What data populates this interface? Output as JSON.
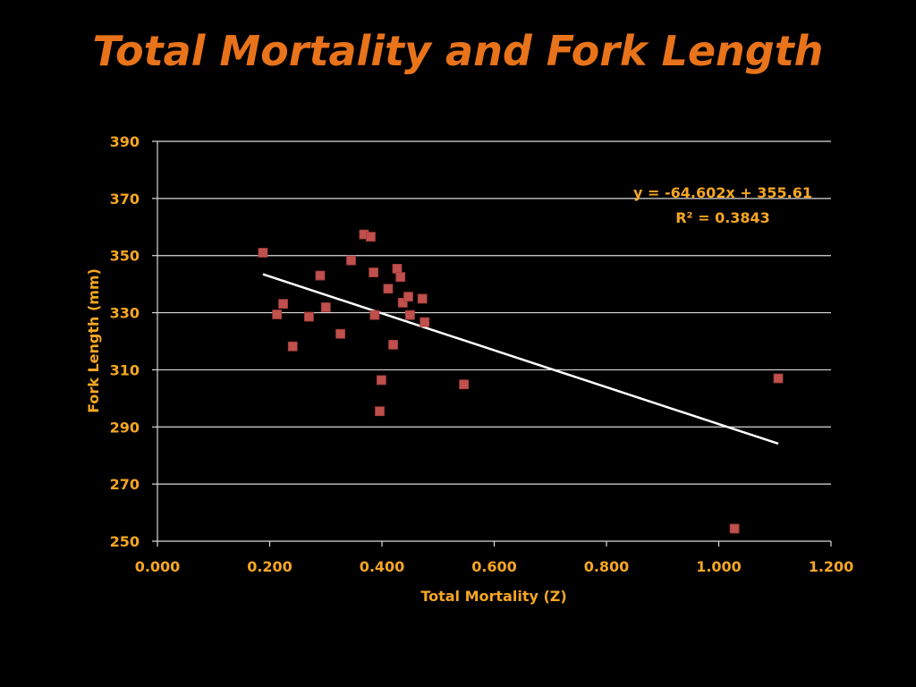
{
  "title": "Total Mortality and Fork Length",
  "chart_data": {
    "type": "scatter",
    "xlabel": "Total Mortality (Z)",
    "ylabel": "Fork Length (mm)",
    "xlim": [
      0,
      1.2
    ],
    "ylim": [
      250,
      390
    ],
    "x_ticks": [
      "0.000",
      "0.200",
      "0.400",
      "0.600",
      "0.800",
      "1.000",
      "1.200"
    ],
    "y_ticks": [
      "250",
      "270",
      "290",
      "310",
      "330",
      "350",
      "370",
      "390"
    ],
    "grid": "horizontal",
    "series": [
      {
        "points": [
          [
            0.188,
            351.0
          ],
          [
            0.213,
            329.4
          ],
          [
            0.224,
            333.1
          ],
          [
            0.241,
            318.2
          ],
          [
            0.27,
            328.6
          ],
          [
            0.29,
            343.0
          ],
          [
            0.3,
            331.9
          ],
          [
            0.326,
            322.6
          ],
          [
            0.345,
            348.3
          ],
          [
            0.368,
            357.4
          ],
          [
            0.38,
            356.6
          ],
          [
            0.385,
            344.1
          ],
          [
            0.387,
            329.2
          ],
          [
            0.396,
            295.5
          ],
          [
            0.399,
            306.4
          ],
          [
            0.411,
            338.4
          ],
          [
            0.42,
            318.8
          ],
          [
            0.427,
            345.4
          ],
          [
            0.433,
            342.5
          ],
          [
            0.437,
            333.5
          ],
          [
            0.447,
            335.6
          ],
          [
            0.45,
            329.2
          ],
          [
            0.472,
            334.9
          ],
          [
            0.476,
            326.7
          ],
          [
            0.546,
            304.9
          ],
          [
            1.028,
            254.4
          ],
          [
            1.106,
            307.0
          ]
        ],
        "color": "#c0504d",
        "marker": "square"
      }
    ],
    "trendline": {
      "type": "linear",
      "slope": -64.602,
      "intercept": 355.61,
      "x_range": [
        0.188,
        1.106
      ],
      "color": "#ffffff",
      "equation": "y = -64.602x + 355.61",
      "r2": "R² = 0.3843"
    }
  }
}
